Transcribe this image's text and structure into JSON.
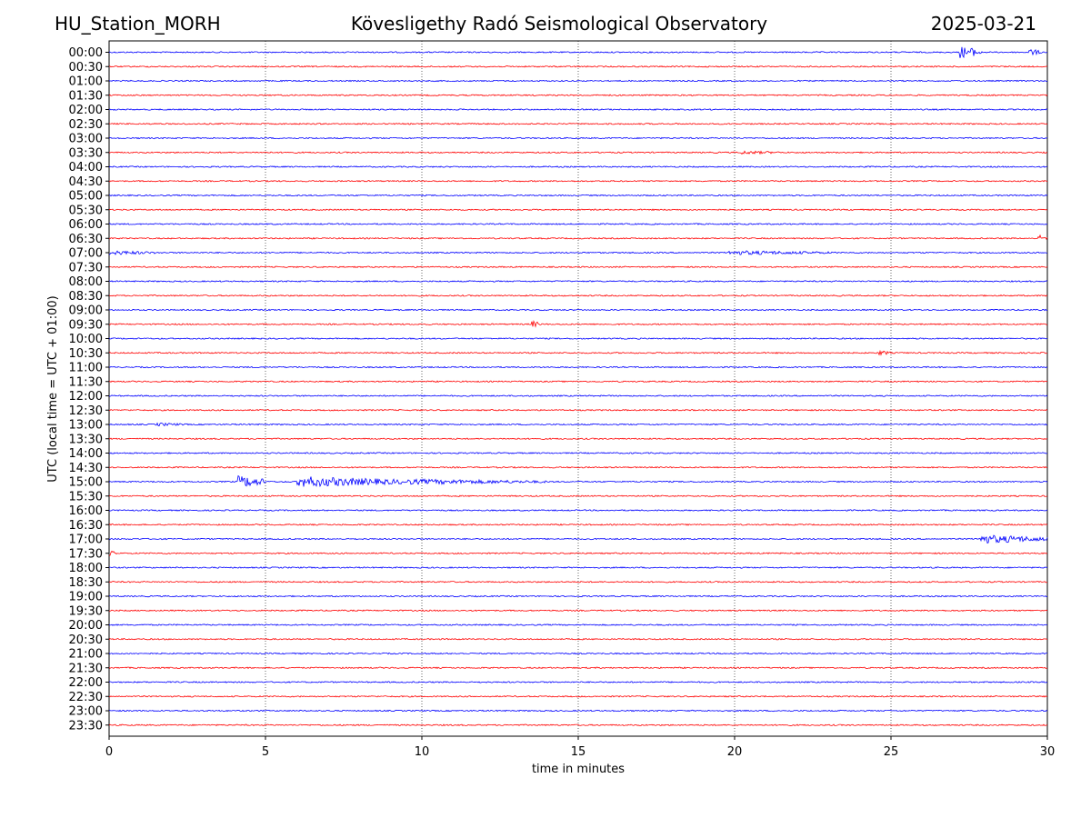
{
  "header": {
    "station": "HU_Station_MORH",
    "observatory": "Kövesligethy Radó Seismological Observatory",
    "date": "2025-03-21"
  },
  "chart_data": {
    "type": "seismogram",
    "xlabel": "time in minutes",
    "ylabel": "UTC (local time = UTC + 01:00)",
    "xlim": [
      0,
      30
    ],
    "xticks": [
      0,
      5,
      10,
      15,
      20,
      25,
      30
    ],
    "vertical_gridlines_at_minutes": [
      5,
      10,
      15,
      20,
      25
    ],
    "trace_colors": [
      "#0000ff",
      "#ff0000"
    ],
    "rows": [
      "00:00",
      "00:30",
      "01:00",
      "01:30",
      "02:00",
      "02:30",
      "03:00",
      "03:30",
      "04:00",
      "04:30",
      "05:00",
      "05:30",
      "06:00",
      "06:30",
      "07:00",
      "07:30",
      "08:00",
      "08:30",
      "09:00",
      "09:30",
      "10:00",
      "10:30",
      "11:00",
      "11:30",
      "12:00",
      "12:30",
      "13:00",
      "13:30",
      "14:00",
      "14:30",
      "15:00",
      "15:30",
      "16:00",
      "16:30",
      "17:00",
      "17:30",
      "18:00",
      "18:30",
      "19:00",
      "19:30",
      "20:00",
      "20:30",
      "21:00",
      "21:30",
      "22:00",
      "22:30",
      "23:00",
      "23:30"
    ],
    "events": [
      {
        "row": "00:00",
        "start_min": 27.2,
        "end_min": 27.9,
        "amplitude": 7
      },
      {
        "row": "00:00",
        "start_min": 29.4,
        "end_min": 29.8,
        "amplitude": 4
      },
      {
        "row": "03:30",
        "start_min": 20.2,
        "end_min": 21.5,
        "amplitude": 2
      },
      {
        "row": "06:30",
        "start_min": 29.7,
        "end_min": 30.0,
        "amplitude": 4
      },
      {
        "row": "07:00",
        "start_min": 0.0,
        "end_min": 1.5,
        "amplitude": 2.5
      },
      {
        "row": "07:00",
        "start_min": 19.8,
        "end_min": 23.2,
        "amplitude": 2.5
      },
      {
        "row": "09:30",
        "start_min": 13.5,
        "end_min": 13.8,
        "amplitude": 4
      },
      {
        "row": "10:30",
        "start_min": 24.6,
        "end_min": 25.0,
        "amplitude": 3
      },
      {
        "row": "13:00",
        "start_min": 1.5,
        "end_min": 2.5,
        "amplitude": 2
      },
      {
        "row": "15:00",
        "start_min": 4.1,
        "end_min": 5.0,
        "amplitude": 7
      },
      {
        "row": "15:00",
        "start_min": 6.0,
        "end_min": 9.5,
        "amplitude": 6
      },
      {
        "row": "15:00",
        "start_min": 9.5,
        "end_min": 14.0,
        "amplitude": 3
      },
      {
        "row": "17:00",
        "start_min": 27.8,
        "end_min": 30.0,
        "amplitude": 5
      },
      {
        "row": "17:30",
        "start_min": 0.0,
        "end_min": 0.3,
        "amplitude": 3
      }
    ]
  }
}
